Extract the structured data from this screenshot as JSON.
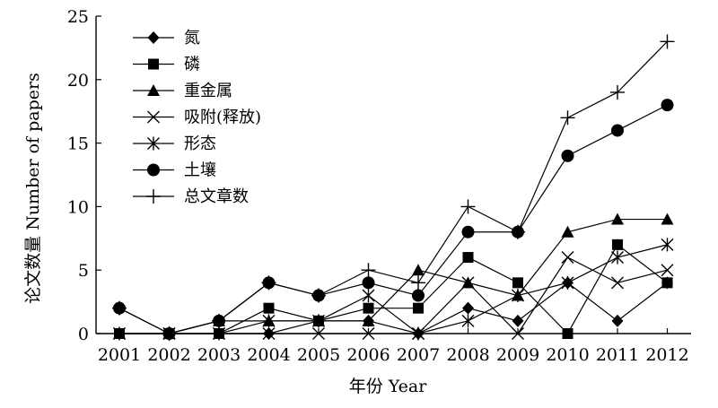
{
  "chart_data": {
    "type": "line",
    "xlabel": "年份 Year",
    "ylabel": "论文数量 Number of papers",
    "categories": [
      "2001",
      "2002",
      "2003",
      "2004",
      "2005",
      "2006",
      "2007",
      "2008",
      "2009",
      "2010",
      "2011",
      "2012"
    ],
    "ylim": [
      0,
      25
    ],
    "yticks": [
      "0",
      "5",
      "10",
      "15",
      "20",
      "25"
    ],
    "grid": false,
    "legend_position": "top-left",
    "series": [
      {
        "name": "氮",
        "marker": "diamond",
        "values": [
          0,
          0,
          0,
          0,
          1,
          1,
          0,
          2,
          1,
          4,
          1,
          4
        ]
      },
      {
        "name": "磷",
        "marker": "square",
        "values": [
          0,
          0,
          0,
          2,
          1,
          2,
          2,
          6,
          4,
          0,
          7,
          4
        ]
      },
      {
        "name": "重金属",
        "marker": "triangle",
        "values": [
          0,
          0,
          1,
          1,
          1,
          1,
          5,
          4,
          3,
          8,
          9,
          9
        ]
      },
      {
        "name": "吸附(释放)",
        "marker": "x",
        "values": [
          0,
          0,
          0,
          0,
          0,
          0,
          0,
          4,
          0,
          6,
          4,
          5
        ]
      },
      {
        "name": "形态",
        "marker": "asterisk",
        "values": [
          0,
          0,
          0,
          1,
          1,
          3,
          0,
          1,
          3,
          4,
          6,
          7
        ]
      },
      {
        "name": "土壤",
        "marker": "circle",
        "values": [
          2,
          0,
          1,
          4,
          3,
          4,
          3,
          8,
          8,
          14,
          16,
          18
        ]
      },
      {
        "name": "总文章数",
        "marker": "plus",
        "values": [
          2,
          0,
          1,
          4,
          3,
          5,
          4,
          10,
          8,
          17,
          19,
          23
        ]
      }
    ]
  },
  "colors": {
    "line": "#000000",
    "background": "#ffffff"
  }
}
